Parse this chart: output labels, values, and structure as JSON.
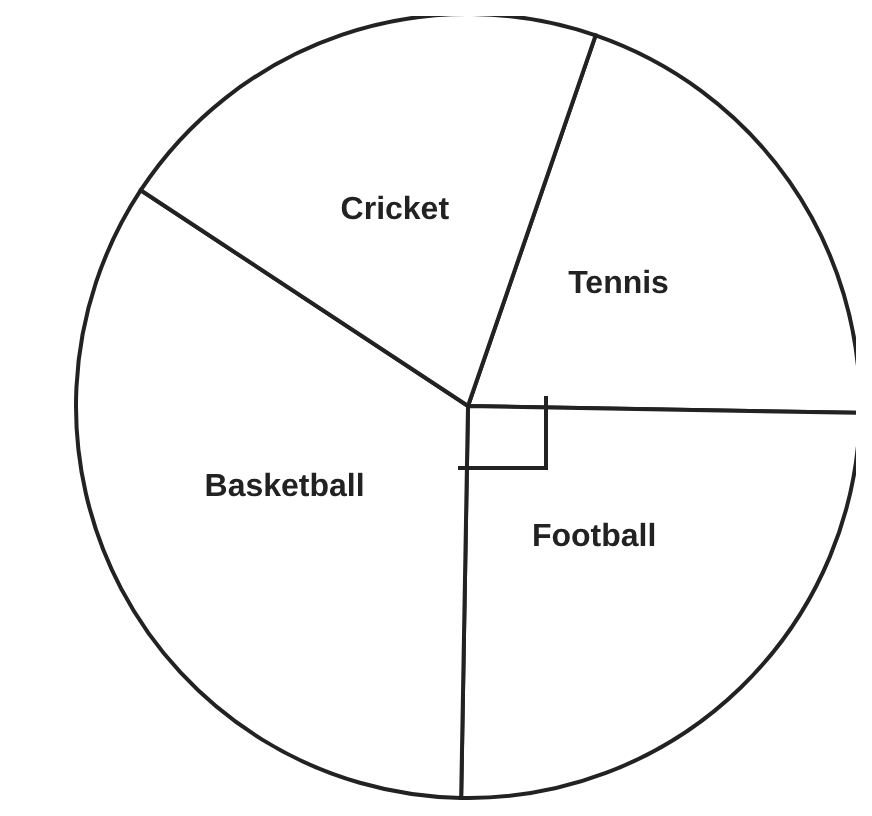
{
  "chart_data": {
    "type": "pie",
    "categories": [
      "Tennis",
      "Football",
      "Basketball",
      "Cricket"
    ],
    "values": [
      20,
      25,
      34,
      21
    ],
    "colors": [
      "#ffffff",
      "#ffffff",
      "#ffffff",
      "#ffffff"
    ],
    "legend": false
  }
}
